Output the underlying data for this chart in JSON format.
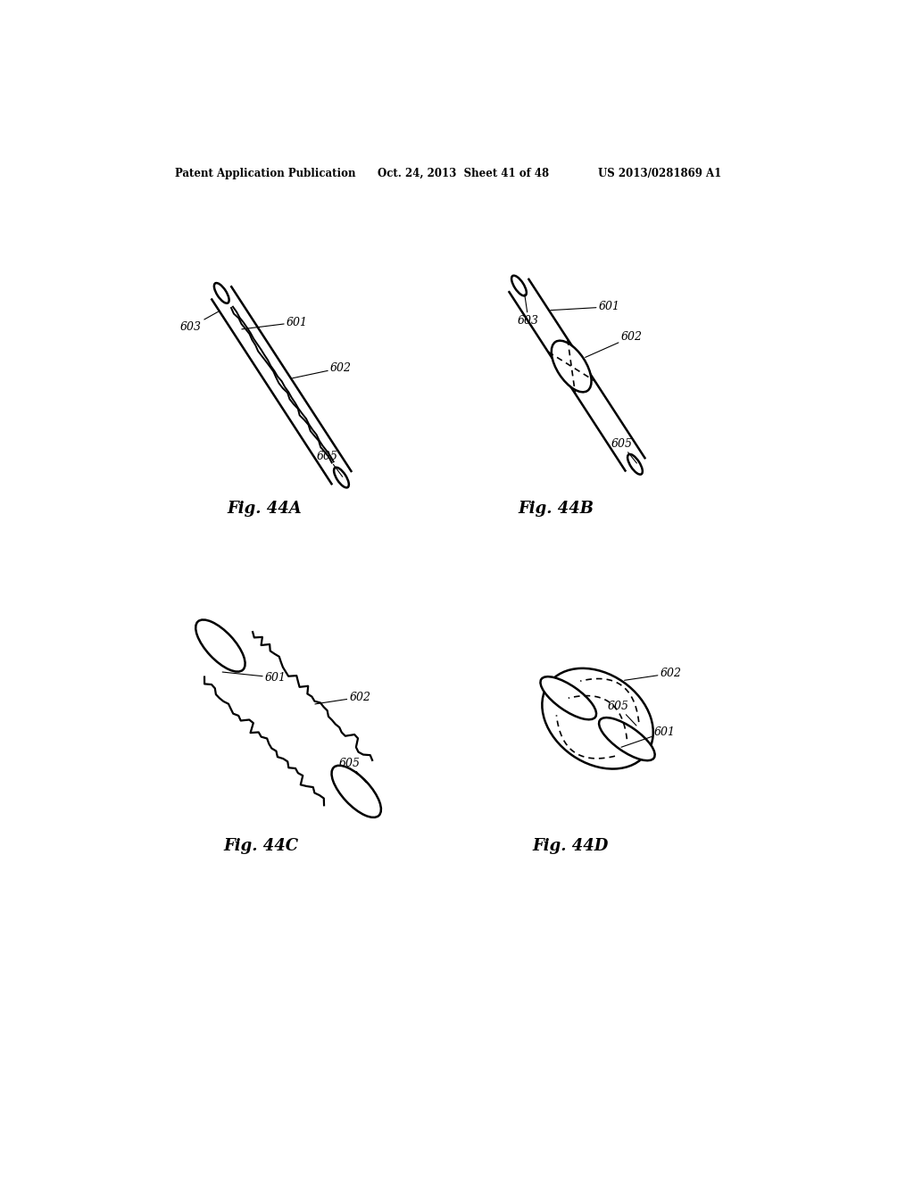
{
  "bg_color": "#ffffff",
  "header_left": "Patent Application Publication",
  "header_mid": "Oct. 24, 2013  Sheet 41 of 48",
  "header_right": "US 2013/0281869 A1",
  "line_color": "#000000"
}
